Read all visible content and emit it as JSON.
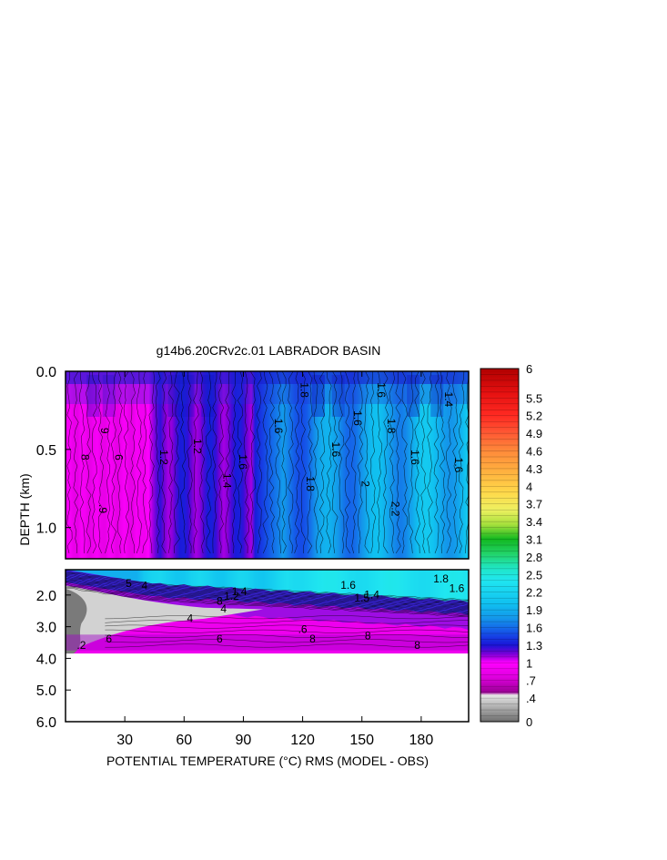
{
  "chart_data": {
    "type": "heatmap",
    "title": "g14b6.20CRv2c.01 LABRADOR BASIN",
    "xlabel": "POTENTIAL TEMPERATURE (°C) RMS (MODEL - OBS)",
    "ylabel": "DEPTH (km)",
    "xlim": [
      0,
      204
    ],
    "x_ticks": [
      "30",
      "60",
      "90",
      "120",
      "150",
      "180"
    ],
    "x_tick_values": [
      30,
      60,
      90,
      120,
      150,
      180
    ],
    "upper_panel": {
      "ylim": [
        0.0,
        1.2
      ],
      "y_ticks": [
        "0.0",
        "0.5",
        "1.0"
      ],
      "y_tick_values": [
        0.0,
        0.5,
        1.0
      ]
    },
    "lower_panel": {
      "ylim": [
        1.2,
        6.0
      ],
      "y_ticks": [
        "2.0",
        "3.0",
        "4.0",
        "5.0",
        "6.0"
      ],
      "y_tick_values": [
        2.0,
        3.0,
        4.0,
        5.0,
        6.0
      ],
      "data_bottom_depth": 3.85
    },
    "colorbar": {
      "labels": [
        "6",
        "5.5",
        "5.2",
        "4.9",
        "4.6",
        "4.3",
        "4",
        "3.7",
        "3.4",
        "3.1",
        "2.8",
        "2.5",
        "2.2",
        "1.9",
        "1.6",
        "1.3",
        "1",
        ".7",
        ".4",
        "0"
      ],
      "stops": [
        [
          0.0,
          "#6e6e6e"
        ],
        [
          0.3,
          "#bdbdbd"
        ],
        [
          0.45,
          "#e6e6e6"
        ],
        [
          0.5,
          "#9b0095"
        ],
        [
          0.75,
          "#dd00dd"
        ],
        [
          1.0,
          "#ff00ff"
        ],
        [
          1.15,
          "#7a00d6"
        ],
        [
          1.3,
          "#1a14d8"
        ],
        [
          1.5,
          "#1550e8"
        ],
        [
          1.75,
          "#1495ea"
        ],
        [
          2.0,
          "#10c0f0"
        ],
        [
          2.4,
          "#20e6f0"
        ],
        [
          2.6,
          "#20e6c8"
        ],
        [
          2.85,
          "#22d46a"
        ],
        [
          3.1,
          "#12b820"
        ],
        [
          3.35,
          "#a6e03c"
        ],
        [
          3.6,
          "#eef060"
        ],
        [
          3.9,
          "#ffd84a"
        ],
        [
          4.2,
          "#ffb640"
        ],
        [
          4.6,
          "#ff8a3a"
        ],
        [
          4.9,
          "#ff5a34"
        ],
        [
          5.2,
          "#ff2a22"
        ],
        [
          5.6,
          "#e41010"
        ],
        [
          6.0,
          "#b00000"
        ]
      ]
    },
    "contour_labels_upper": [
      {
        "x": 8,
        "depth": 0.55,
        "text": "8"
      },
      {
        "x": 18,
        "depth": 0.38,
        "text": "9"
      },
      {
        "x": 25,
        "depth": 0.55,
        "text": "6"
      },
      {
        "x": 17,
        "depth": 0.88,
        "text": ".9"
      },
      {
        "x": 48,
        "depth": 0.55,
        "text": "1.2"
      },
      {
        "x": 65,
        "depth": 0.48,
        "text": "1.2"
      },
      {
        "x": 80,
        "depth": 0.7,
        "text": "1.4"
      },
      {
        "x": 88,
        "depth": 0.58,
        "text": "1.6"
      },
      {
        "x": 106,
        "depth": 0.35,
        "text": "1.6"
      },
      {
        "x": 119,
        "depth": 0.12,
        "text": "1.8"
      },
      {
        "x": 122,
        "depth": 0.72,
        "text": "1.8"
      },
      {
        "x": 135,
        "depth": 0.5,
        "text": "1.6"
      },
      {
        "x": 146,
        "depth": 0.3,
        "text": "1.6"
      },
      {
        "x": 150,
        "depth": 0.72,
        "text": "2"
      },
      {
        "x": 158,
        "depth": 0.12,
        "text": "1.6"
      },
      {
        "x": 163,
        "depth": 0.35,
        "text": "1.8"
      },
      {
        "x": 175,
        "depth": 0.55,
        "text": "1.6"
      },
      {
        "x": 192,
        "depth": 0.18,
        "text": "1.4"
      },
      {
        "x": 197,
        "depth": 0.6,
        "text": "1.6"
      },
      {
        "x": 165,
        "depth": 0.88,
        "text": "2.2"
      }
    ],
    "contour_labels_lower": [
      {
        "x": 32,
        "depth": 1.75,
        "text": "5"
      },
      {
        "x": 40,
        "depth": 1.82,
        "text": "4"
      },
      {
        "x": 78,
        "depth": 2.3,
        "text": "8"
      },
      {
        "x": 84,
        "depth": 2.15,
        "text": "1.2"
      },
      {
        "x": 88,
        "depth": 2.0,
        "text": "1.4"
      },
      {
        "x": 63,
        "depth": 2.85,
        "text": "4"
      },
      {
        "x": 80,
        "depth": 2.55,
        "text": "4"
      },
      {
        "x": 78,
        "depth": 3.5,
        "text": "6"
      },
      {
        "x": 120,
        "depth": 3.2,
        "text": ".6"
      },
      {
        "x": 143,
        "depth": 1.8,
        "text": "1.6"
      },
      {
        "x": 150,
        "depth": 2.2,
        "text": "1.5"
      },
      {
        "x": 155,
        "depth": 2.1,
        "text": "1.4"
      },
      {
        "x": 125,
        "depth": 3.5,
        "text": "8"
      },
      {
        "x": 153,
        "depth": 3.4,
        "text": "8"
      },
      {
        "x": 190,
        "depth": 1.6,
        "text": "1.8"
      },
      {
        "x": 198,
        "depth": 1.9,
        "text": "1.6"
      },
      {
        "x": 205,
        "depth": 2.2,
        "text": "8"
      },
      {
        "x": 178,
        "depth": 3.7,
        "text": "8"
      },
      {
        "x": 8,
        "depth": 3.7,
        "text": ".2"
      },
      {
        "x": 22,
        "depth": 3.5,
        "text": "6"
      }
    ]
  }
}
